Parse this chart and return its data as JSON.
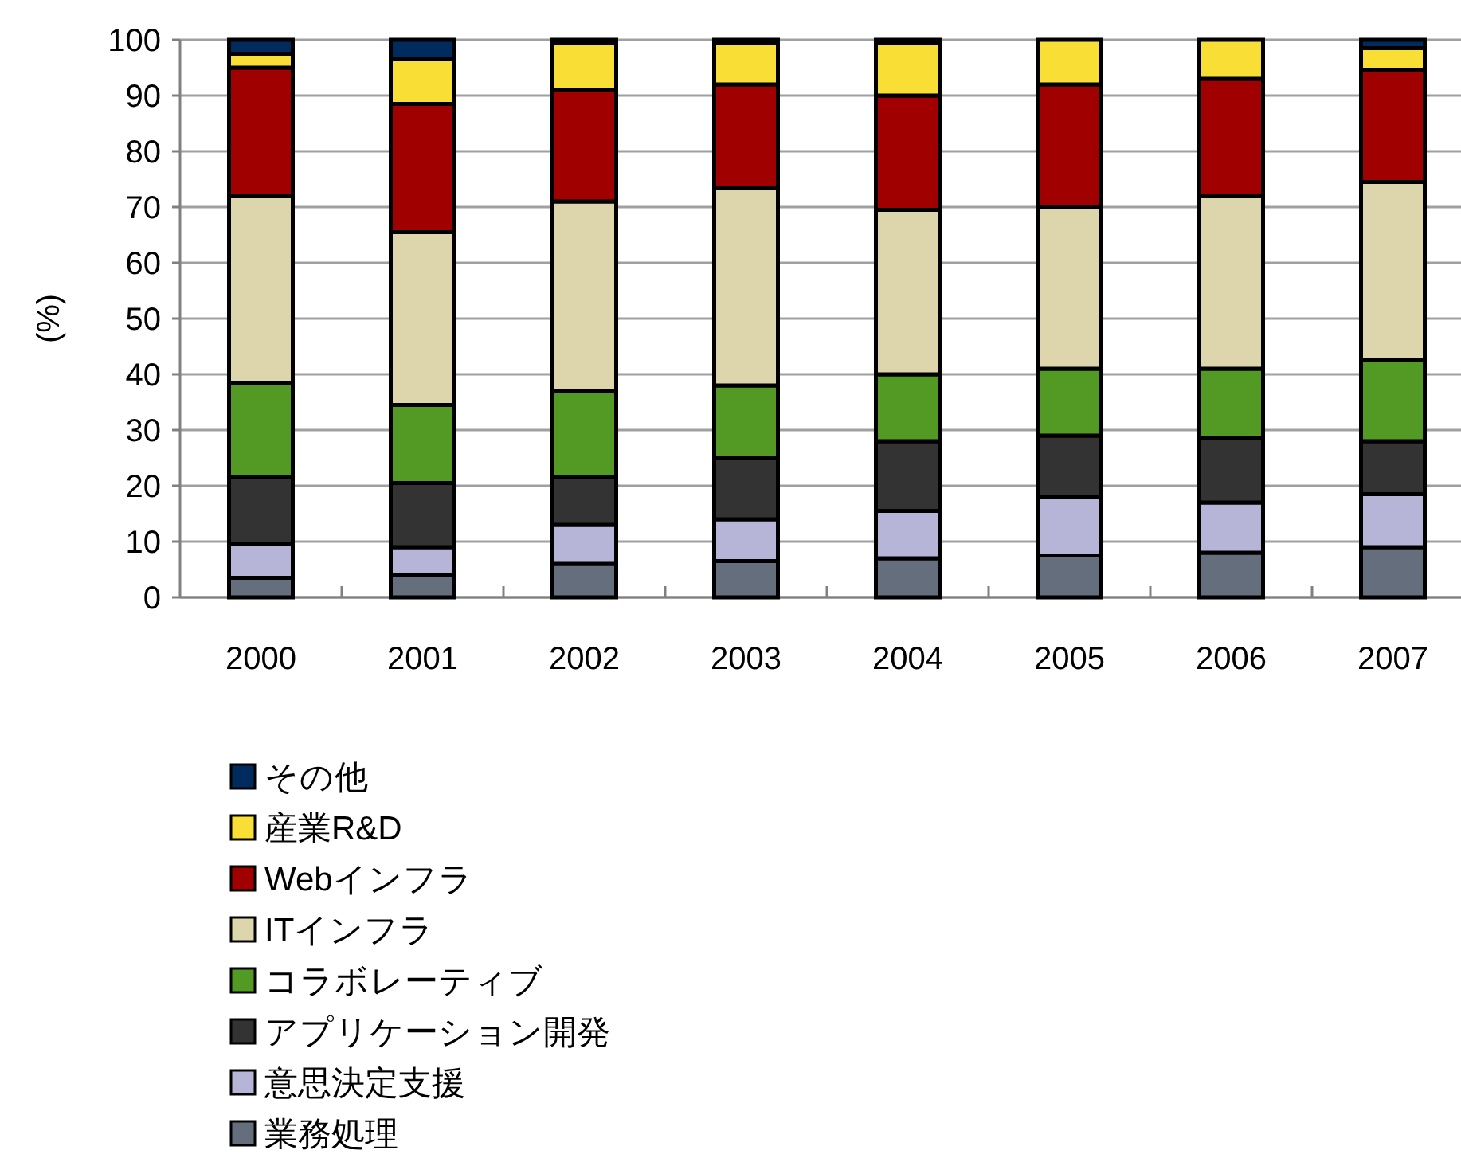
{
  "chart_data": {
    "type": "bar",
    "stacked": true,
    "ylabel": "(%)",
    "categories": [
      "2000",
      "2001",
      "2002",
      "2003",
      "2004",
      "2005",
      "2006",
      "2007"
    ],
    "series": [
      {
        "name": "業務処理",
        "color": "#646e7d",
        "values": [
          3.5,
          4,
          6,
          6.5,
          7,
          7.5,
          8,
          9
        ]
      },
      {
        "name": "意思決定支援",
        "color": "#b6b5d7",
        "values": [
          6,
          5,
          7,
          7.5,
          8.5,
          10.5,
          9,
          9.5
        ]
      },
      {
        "name": "アプリケーション開発",
        "color": "#333333",
        "values": [
          12,
          11.5,
          8.5,
          11,
          12.5,
          11,
          11.5,
          9.5
        ]
      },
      {
        "name": "コラボレーティブ",
        "color": "#529a23",
        "values": [
          17,
          14,
          15.5,
          13,
          12,
          12,
          12.5,
          14.5
        ]
      },
      {
        "name": "ITインフラ",
        "color": "#ddd6ac",
        "values": [
          33.5,
          31,
          34,
          35.5,
          29.5,
          29,
          31,
          32
        ]
      },
      {
        "name": "Webインフラ",
        "color": "#a00000",
        "values": [
          23,
          23,
          20,
          18.5,
          20.5,
          22,
          21,
          20
        ]
      },
      {
        "name": "産業R&D",
        "color": "#f8de35",
        "values": [
          2.5,
          8,
          8.5,
          7.5,
          9.5,
          8,
          7,
          4
        ]
      },
      {
        "name": "その他",
        "color": "#002b5e",
        "values": [
          2.5,
          3.5,
          0.5,
          0.5,
          0.5,
          0,
          0,
          1.5
        ]
      }
    ],
    "ylim": [
      0,
      100
    ],
    "yticks": [
      0,
      10,
      20,
      30,
      40,
      50,
      60,
      70,
      80,
      90,
      100
    ],
    "grid": "y",
    "legend": "bottom"
  }
}
